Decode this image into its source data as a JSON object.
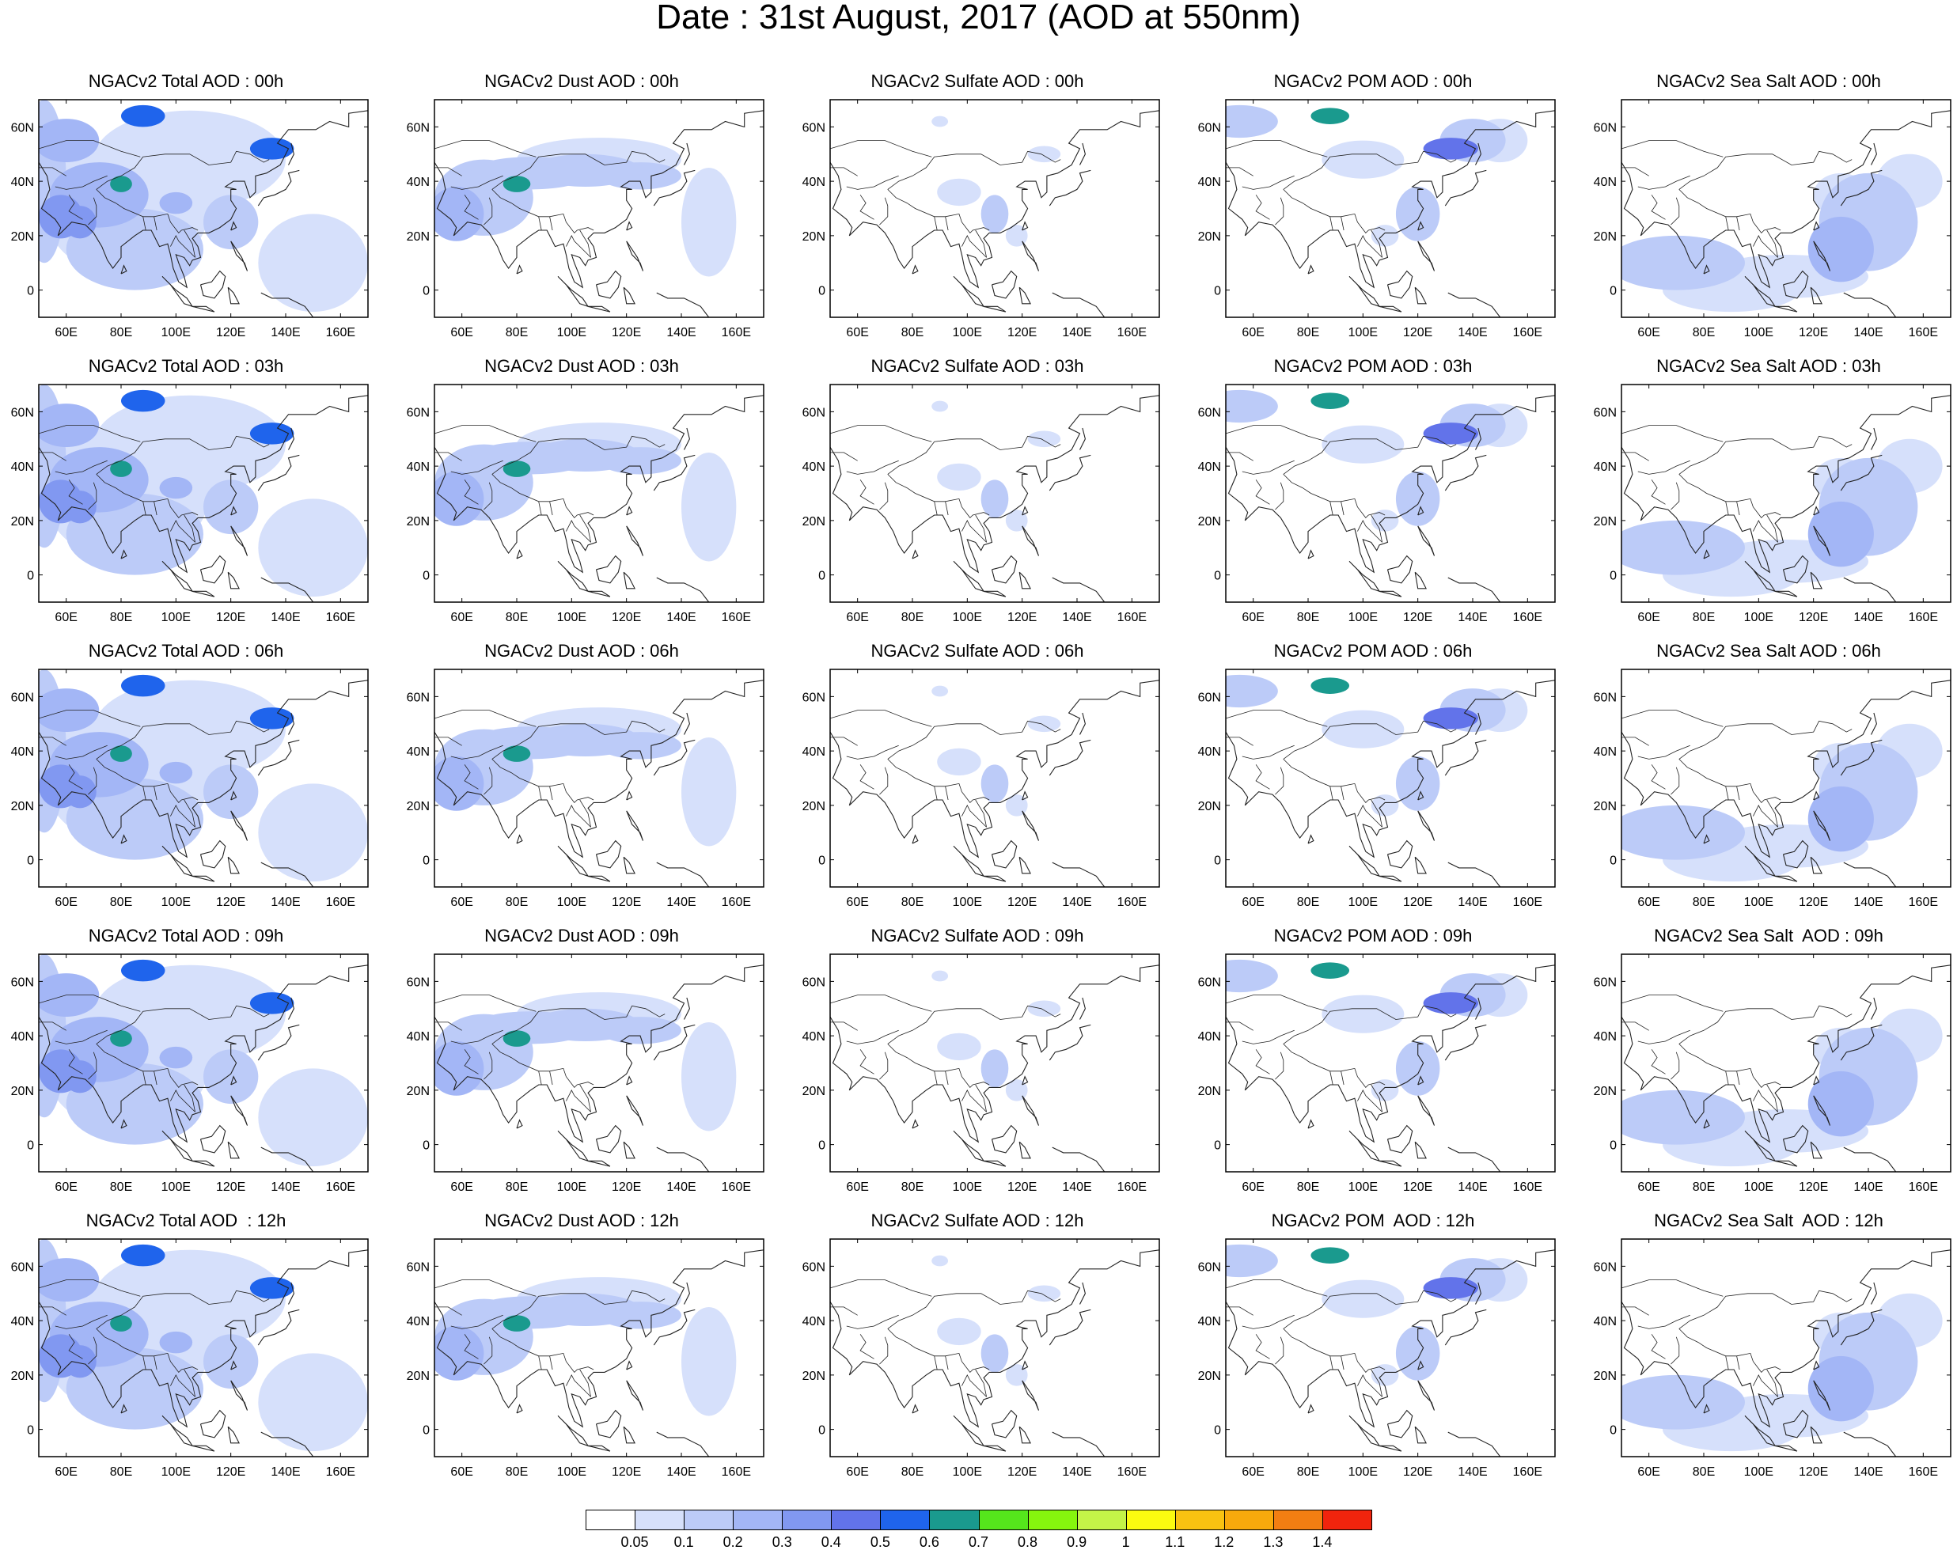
{
  "title": "Date : 31st August, 2017 (AOD at 550nm)",
  "map": {
    "x_ticks": [
      "60E",
      "80E",
      "100E",
      "120E",
      "140E",
      "160E"
    ],
    "y_ticks": [
      "60N",
      "40N",
      "20N",
      "0"
    ],
    "lon_range": [
      50,
      170
    ],
    "lat_range": [
      -10,
      70
    ],
    "projection": "cylindrical-equidistant",
    "coastlines": true
  },
  "panels": [
    {
      "title": "NGACv2 Total AOD : 00h",
      "species": "total",
      "hour": "00h"
    },
    {
      "title": "NGACv2 Dust AOD : 00h",
      "species": "dust",
      "hour": "00h"
    },
    {
      "title": "NGACv2 Sulfate AOD : 00h",
      "species": "sulfate",
      "hour": "00h"
    },
    {
      "title": "NGACv2 POM AOD : 00h",
      "species": "pom",
      "hour": "00h"
    },
    {
      "title": "NGACv2 Sea Salt AOD : 00h",
      "species": "seasalt",
      "hour": "00h"
    },
    {
      "title": "NGACv2 Total AOD : 03h",
      "species": "total",
      "hour": "03h"
    },
    {
      "title": "NGACv2 Dust AOD : 03h",
      "species": "dust",
      "hour": "03h"
    },
    {
      "title": "NGACv2 Sulfate AOD : 03h",
      "species": "sulfate",
      "hour": "03h"
    },
    {
      "title": "NGACv2 POM AOD : 03h",
      "species": "pom",
      "hour": "03h"
    },
    {
      "title": "NGACv2 Sea Salt AOD : 03h",
      "species": "seasalt",
      "hour": "03h"
    },
    {
      "title": "NGACv2 Total AOD : 06h",
      "species": "total",
      "hour": "06h"
    },
    {
      "title": "NGACv2 Dust AOD : 06h",
      "species": "dust",
      "hour": "06h"
    },
    {
      "title": "NGACv2 Sulfate AOD : 06h",
      "species": "sulfate",
      "hour": "06h"
    },
    {
      "title": "NGACv2 POM AOD : 06h",
      "species": "pom",
      "hour": "06h"
    },
    {
      "title": "NGACv2 Sea Salt AOD : 06h",
      "species": "seasalt",
      "hour": "06h"
    },
    {
      "title": "NGACv2 Total AOD : 09h",
      "species": "total",
      "hour": "09h"
    },
    {
      "title": "NGACv2 Dust AOD : 09h",
      "species": "dust",
      "hour": "09h"
    },
    {
      "title": "NGACv2 Sulfate AOD : 09h",
      "species": "sulfate",
      "hour": "09h"
    },
    {
      "title": "NGACv2 POM AOD : 09h",
      "species": "pom",
      "hour": "09h"
    },
    {
      "title": "NGACv2 Sea Salt  AOD : 09h",
      "species": "seasalt",
      "hour": "09h"
    },
    {
      "title": "NGACv2 Total AOD  : 12h",
      "species": "total",
      "hour": "12h"
    },
    {
      "title": "NGACv2 Dust AOD : 12h",
      "species": "dust",
      "hour": "12h"
    },
    {
      "title": "NGACv2 Sulfate AOD : 12h",
      "species": "sulfate",
      "hour": "12h"
    },
    {
      "title": "NGACv2 POM  AOD : 12h",
      "species": "pom",
      "hour": "12h"
    },
    {
      "title": "NGACv2 Sea Salt  AOD : 12h",
      "species": "seasalt",
      "hour": "12h"
    }
  ],
  "colorbar": {
    "labels": [
      "0.05",
      "0.1",
      "0.2",
      "0.3",
      "0.4",
      "0.5",
      "0.6",
      "0.7",
      "0.8",
      "0.9",
      "1",
      "1.1",
      "1.2",
      "1.3",
      "1.4"
    ],
    "colors": [
      "#ffffff",
      "#d6e0fb",
      "#bccbf8",
      "#a3b6f6",
      "#8198f1",
      "#6273ea",
      "#1f64ec",
      "#1a9a8e",
      "#55e61c",
      "#86f50e",
      "#c4f448",
      "#fbfb10",
      "#f9c211",
      "#f8a90c",
      "#f27e12",
      "#f1240d"
    ]
  }
}
